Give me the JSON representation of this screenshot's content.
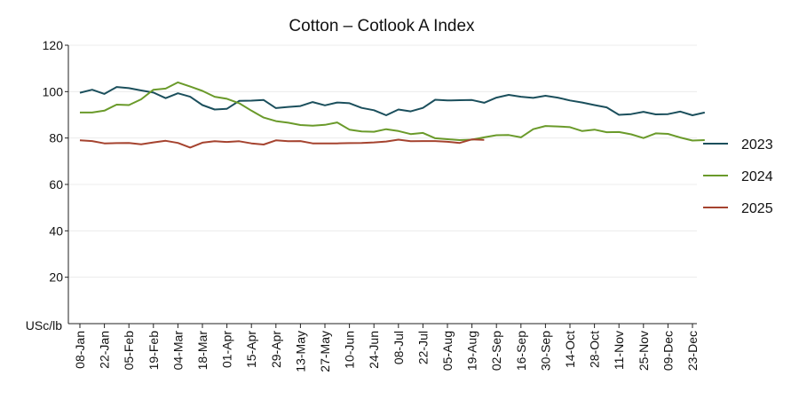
{
  "chart_data": {
    "type": "line",
    "title": "Cotton – Cotlook A Index",
    "ylabel": "USc/lb",
    "xlabel": "",
    "ylim": [
      0,
      120
    ],
    "yticks": [
      20,
      40,
      60,
      80,
      100,
      120
    ],
    "grid": "horizontal",
    "legend": "right",
    "x_tick_labels": [
      "08-Jan",
      "22-Jan",
      "05-Feb",
      "19-Feb",
      "04-Mar",
      "18-Mar",
      "01-Apr",
      "15-Apr",
      "29-Apr",
      "13-May",
      "27-May",
      "10-Jun",
      "24-Jun",
      "08-Jul",
      "22-Jul",
      "05-Aug",
      "19-Aug",
      "02-Sep",
      "16-Sep",
      "30-Sep",
      "14-Oct",
      "28-Oct",
      "11-Nov",
      "25-Nov",
      "09-Dec",
      "23-Dec"
    ],
    "x_note": "Weekly observations; values indexed by week position, ticks every 2 weeks starting at week 1 (08-Jan).",
    "series": [
      {
        "name": "2023",
        "color": "#1b4f5c",
        "values": [
          99.5,
          100.8,
          99.0,
          102.0,
          101.5,
          100.5,
          99.6,
          97.2,
          99.3,
          97.8,
          94.2,
          92.3,
          92.6,
          96.0,
          96.1,
          96.4,
          92.9,
          93.4,
          93.8,
          95.5,
          94.1,
          95.3,
          95.0,
          93.0,
          92.0,
          89.8,
          92.3,
          91.5,
          93.0,
          96.5,
          96.2,
          96.3,
          96.4,
          95.2,
          97.4,
          98.6,
          97.8,
          97.3,
          98.2,
          97.4,
          96.2,
          95.3,
          94.2,
          93.2,
          90.0,
          90.3,
          91.3,
          90.2,
          90.3,
          91.4,
          89.8,
          91.0
        ]
      },
      {
        "name": "2024",
        "color": "#6a9a2a",
        "values": [
          91.0,
          91.0,
          91.8,
          94.4,
          94.2,
          96.7,
          100.8,
          101.3,
          104.0,
          102.2,
          100.3,
          97.8,
          96.9,
          95.0,
          91.8,
          88.8,
          87.3,
          86.6,
          85.6,
          85.3,
          85.7,
          86.7,
          83.6,
          82.8,
          82.7,
          83.8,
          83.0,
          81.7,
          82.2,
          79.9,
          79.5,
          79.1,
          79.3,
          80.3,
          81.2,
          81.3,
          80.3,
          83.8,
          85.2,
          85.0,
          84.7,
          83.0,
          83.6,
          82.5,
          82.6,
          81.6,
          80.0,
          82.0,
          81.8,
          80.2,
          78.9,
          79.1
        ]
      },
      {
        "name": "2025",
        "color": "#a5432f",
        "values": [
          79.0,
          78.7,
          77.7,
          77.8,
          77.9,
          77.3,
          78.1,
          78.8,
          77.9,
          75.9,
          78.0,
          78.6,
          78.3,
          78.6,
          77.7,
          77.2,
          79.0,
          78.6,
          78.7,
          77.7,
          77.7,
          77.7,
          77.8,
          77.9,
          78.1,
          78.5,
          79.3,
          78.6,
          78.7,
          78.7,
          78.4,
          77.9,
          79.4,
          79.2
        ]
      }
    ]
  }
}
